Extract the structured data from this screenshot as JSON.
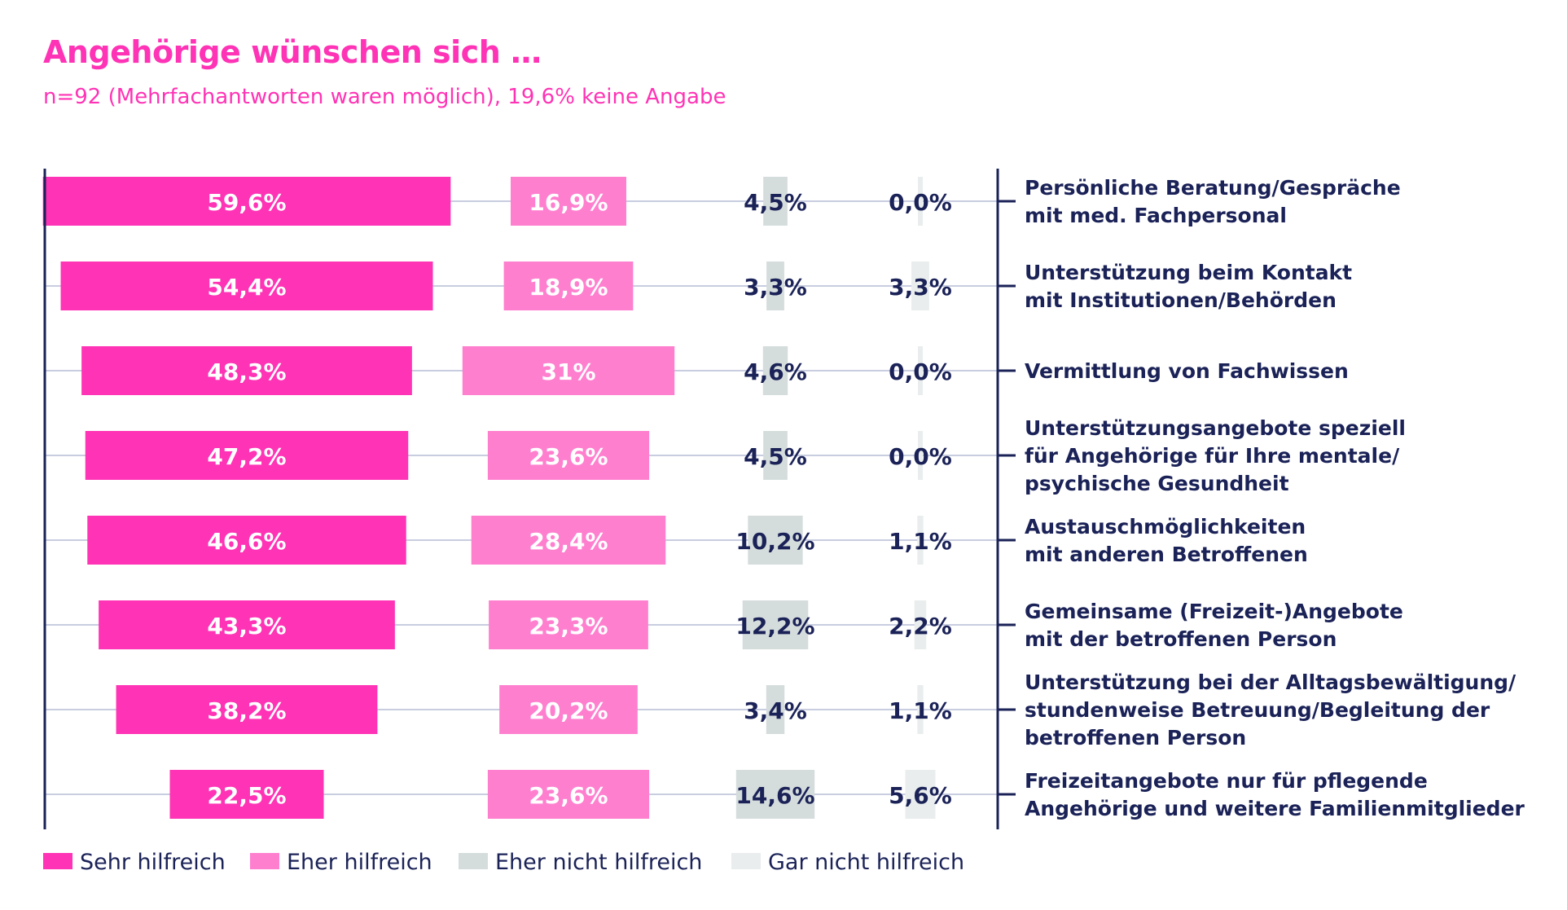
{
  "colors": {
    "sehr": "#ff33b5",
    "eher": "#ff7fcf",
    "eher_nicht": "#d5dcdc",
    "gar_nicht": "#e9eded",
    "navy": "#1a2257",
    "guide": "#c8cde0",
    "white": "#ffffff"
  },
  "chart_data": {
    "type": "bar",
    "title": "Angehörige wünschen sich …",
    "subtitle": "n=92 (Mehrfachantworten waren möglich), 19,6% keine Angabe",
    "categories": [
      [
        "Persönliche Beratung/Gespräche",
        "mit med. Fachpersonal"
      ],
      [
        "Unterstützung beim Kontakt",
        "mit Institutionen/Behörden"
      ],
      [
        "Vermittlung von Fachwissen"
      ],
      [
        "Unterstützungsangebote speziell",
        "für Angehörige für Ihre mentale/",
        "psychische Gesundheit"
      ],
      [
        "Austauschmöglichkeiten",
        "mit anderen Betroffenen"
      ],
      [
        "Gemeinsame (Freizeit-)Angebote",
        "mit der betroffenen Person"
      ],
      [
        "Unterstützung bei der Alltagsbewältigung/",
        "stundenweise Betreuung/Begleitung der",
        "betroffenen Person"
      ],
      [
        "Freizeitangebote nur für pflegende",
        "Angehörige und weitere Familienmitglieder"
      ]
    ],
    "series": [
      {
        "name": "Sehr hilfreich",
        "color_key": "sehr",
        "values": [
          59.6,
          54.4,
          48.3,
          47.2,
          46.6,
          43.3,
          38.2,
          22.5
        ],
        "labels": [
          "59,6%",
          "54,4%",
          "48,3%",
          "47,2%",
          "46,6%",
          "43,3%",
          "38,2%",
          "22,5%"
        ]
      },
      {
        "name": "Eher hilfreich",
        "color_key": "eher",
        "values": [
          16.9,
          18.9,
          31,
          23.6,
          28.4,
          23.3,
          20.2,
          23.6
        ],
        "labels": [
          "16,9%",
          "18,9%",
          "31%",
          "23,6%",
          "28,4%",
          "23,3%",
          "20,2%",
          "23,6%"
        ]
      },
      {
        "name": "Eher nicht hilfreich",
        "color_key": "eher_nicht",
        "values": [
          4.5,
          3.3,
          4.6,
          4.5,
          10.2,
          12.2,
          3.4,
          14.6
        ],
        "labels": [
          "4,5%",
          "3,3%",
          "4,6%",
          "4,5%",
          "10,2%",
          "12,2%",
          "3,4%",
          "14,6%"
        ]
      },
      {
        "name": "Gar nicht hilfreich",
        "color_key": "gar_nicht",
        "values": [
          0.0,
          3.3,
          0.0,
          0.0,
          1.1,
          2.2,
          1.1,
          5.6
        ],
        "labels": [
          "0,0%",
          "3,3%",
          "0,0%",
          "0,0%",
          "1,1%",
          "2,2%",
          "1,1%",
          "5,6%"
        ]
      }
    ],
    "legend_position": "bottom-left"
  }
}
